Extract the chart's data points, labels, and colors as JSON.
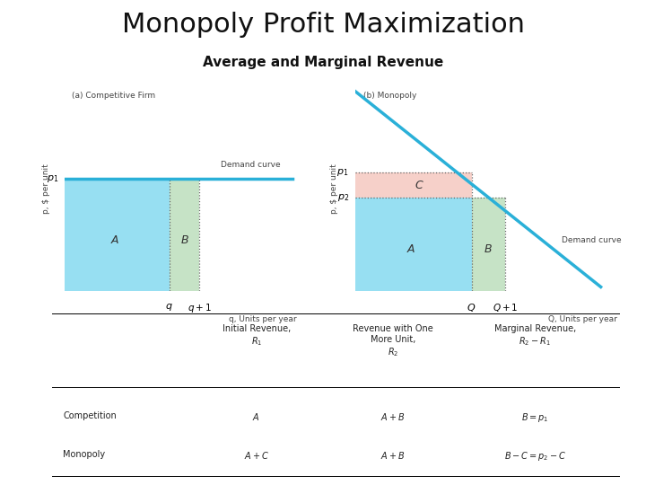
{
  "title": "Monopoly Profit Maximization",
  "subtitle": "Average and Marginal Revenue",
  "title_fontsize": 22,
  "subtitle_fontsize": 11,
  "bg_color": "#ffffff",
  "panel_a_label": "(a) Competitive Firm",
  "panel_b_label": "(b) Monopoly",
  "blue_color": "#7dd8ef",
  "green_color": "#b8ddb8",
  "pink_color": "#f5c8c0",
  "line_color": "#2ab0d8",
  "demand_label_a": "Demand curve",
  "demand_label_b": "Demand curve",
  "ylabel_a": "p, $ per unit",
  "xlabel_a": "q, Units per year",
  "ylabel_b": "p, $ per unit",
  "xlabel_b": "Q, Units per year",
  "p1_label": "$p_1$",
  "p2_label": "$p_2$",
  "q_label": "$q$",
  "q1_label": "$q+1$",
  "Q_label": "$Q$",
  "Q1_label": "$Q+1$",
  "A_label": "$A$",
  "B_label": "$B$",
  "C_label": "$C$"
}
